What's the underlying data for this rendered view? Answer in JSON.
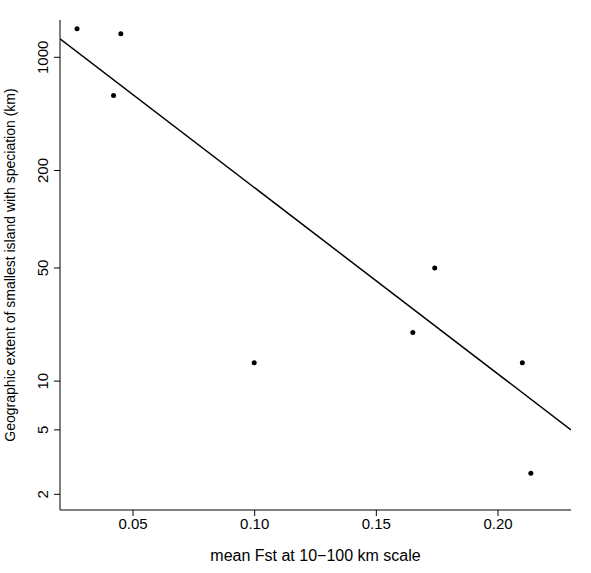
{
  "chart_data": {
    "type": "scatter",
    "x_label": "mean Fst at 10−100 km scale",
    "y_label": "Geographic extent of smallest island with speciation (km)",
    "x": [
      0.027,
      0.045,
      0.042,
      0.0998,
      0.165,
      0.174,
      0.21,
      0.2135
    ],
    "y": [
      1500,
      1400,
      580,
      13,
      20,
      50,
      13,
      2.7
    ],
    "color": "#000000",
    "fit": {
      "x": [
        0.02,
        0.23
      ],
      "y": [
        1300,
        5
      ]
    },
    "xlim": [
      0.02,
      0.23
    ],
    "xticks": [
      0.05,
      {
        "value": 0.1,
        "label": "0.10"
      },
      0.15,
      {
        "value": 0.2,
        "label": "0.20"
      }
    ],
    "ylim": [
      1.6,
      1700
    ],
    "yticks": [
      2,
      5,
      10,
      50,
      200,
      1000
    ],
    "log": "y",
    "grid": false
  }
}
